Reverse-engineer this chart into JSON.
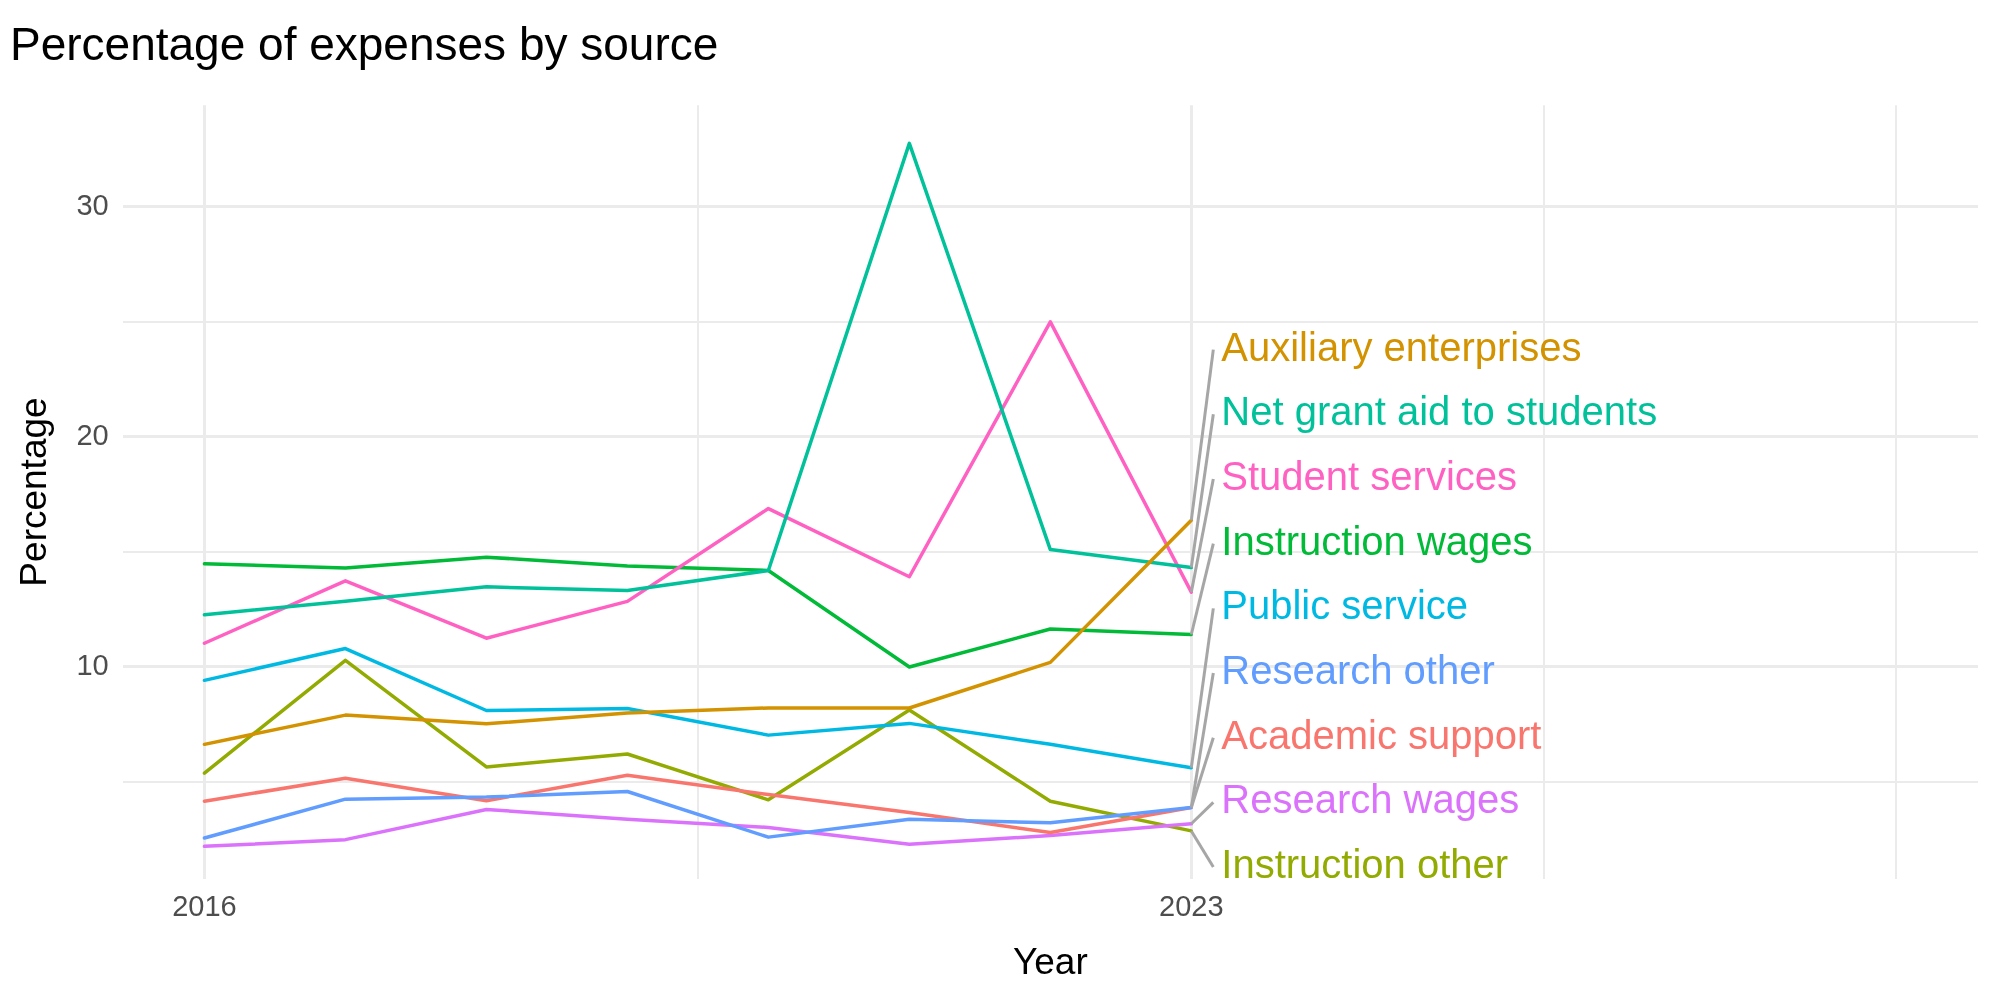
{
  "chart_data": {
    "type": "line",
    "title": "Percentage of expenses by source",
    "xlabel": "Year",
    "ylabel": "Percentage",
    "x": [
      2016,
      2017,
      2018,
      2019,
      2020,
      2021,
      2022,
      2023
    ],
    "xlim": [
      2015.42,
      2028.58
    ],
    "xticks": [
      2016,
      {
        "value": 2019.5,
        "label": null
      },
      2023,
      {
        "value": 2025.5,
        "label": null
      },
      {
        "value": 2028,
        "label": null
      }
    ],
    "ylim": [
      0.8,
      34.4
    ],
    "yticks": [
      {
        "value": 5,
        "label": null
      },
      10,
      {
        "value": 15,
        "label": null
      },
      20,
      {
        "value": 25,
        "label": null
      },
      30
    ],
    "grid": true,
    "legend": false,
    "marker": "none",
    "line_style": "solid",
    "series": [
      {
        "name": "Auxiliary enterprises",
        "color": "#d39200",
        "values": [
          6.64,
          7.91,
          7.53,
          8.0,
          8.22,
          8.22,
          10.2,
          16.37
        ]
      },
      {
        "name": "Net grant aid to students",
        "color": "#00c19a",
        "values": [
          12.27,
          12.85,
          13.48,
          13.32,
          14.19,
          32.74,
          15.1,
          14.32
        ]
      },
      {
        "name": "Student services",
        "color": "#ff61c3",
        "values": [
          11.03,
          13.74,
          11.25,
          12.85,
          16.88,
          13.92,
          24.99,
          13.25
        ]
      },
      {
        "name": "Instruction wages",
        "color": "#00ba38",
        "values": [
          14.48,
          14.3,
          14.77,
          14.39,
          14.19,
          10.0,
          11.65,
          11.41
        ]
      },
      {
        "name": "Public service",
        "color": "#00b9e3",
        "values": [
          9.42,
          10.8,
          8.11,
          8.2,
          7.04,
          7.55,
          6.64,
          5.62
        ]
      },
      {
        "name": "Research other",
        "color": "#619cff",
        "values": [
          2.57,
          4.26,
          4.35,
          4.59,
          2.61,
          3.39,
          3.23,
          3.9
        ]
      },
      {
        "name": "Academic support",
        "color": "#f8766d",
        "values": [
          4.17,
          5.17,
          4.19,
          5.3,
          4.46,
          3.68,
          2.81,
          3.9
        ]
      },
      {
        "name": "Research wages",
        "color": "#db72fb",
        "values": [
          2.21,
          2.5,
          3.81,
          3.39,
          3.03,
          2.3,
          2.68,
          3.19
        ]
      },
      {
        "name": "Instruction other",
        "color": "#93aa00",
        "values": [
          5.39,
          10.29,
          5.66,
          6.22,
          4.23,
          8.13,
          4.17,
          2.88
        ]
      }
    ]
  }
}
